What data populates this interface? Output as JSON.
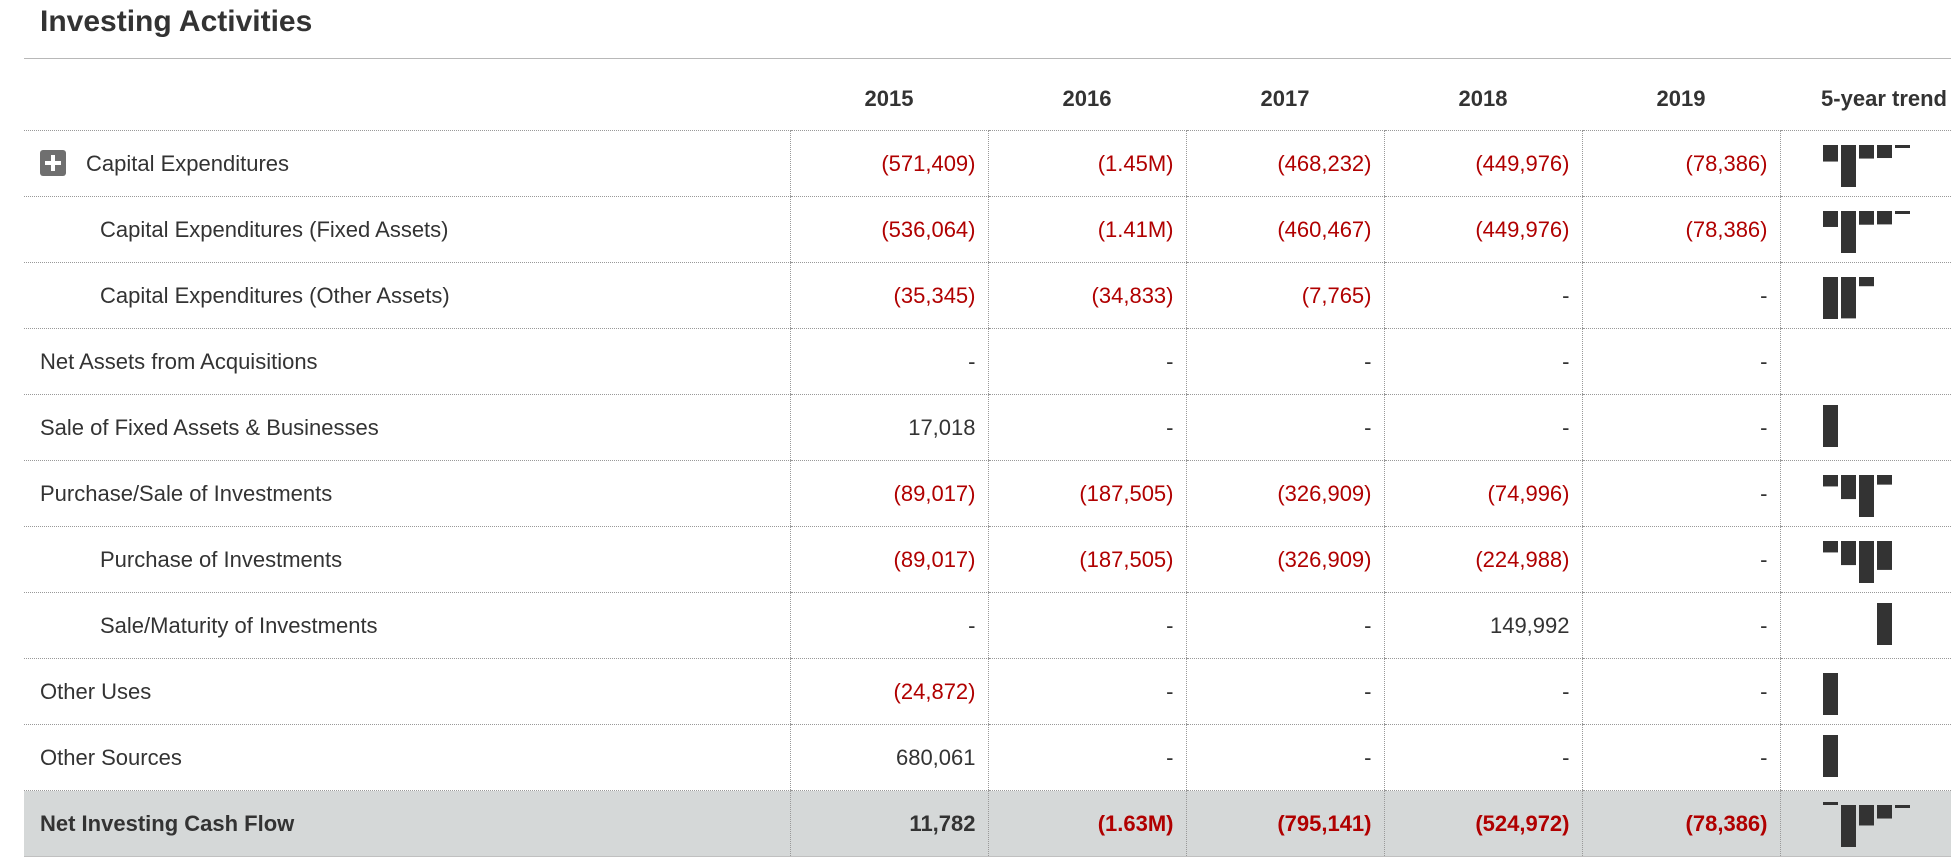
{
  "section_title": "Investing Activities",
  "columns": [
    "2015",
    "2016",
    "2017",
    "2018",
    "2019"
  ],
  "trend_header": "5-year trend",
  "rows": [
    {
      "label": "Capital Expenditures",
      "level": 1,
      "expandable": true,
      "values": [
        "(571,409)",
        "(1.45M)",
        "(468,232)",
        "(449,976)",
        "(78,386)"
      ],
      "trend": [
        -571409,
        -1450000,
        -468232,
        -449976,
        -78386
      ]
    },
    {
      "label": "Capital Expenditures (Fixed Assets)",
      "level": 2,
      "values": [
        "(536,064)",
        "(1.41M)",
        "(460,467)",
        "(449,976)",
        "(78,386)"
      ],
      "trend": [
        -536064,
        -1410000,
        -460467,
        -449976,
        -78386
      ]
    },
    {
      "label": "Capital Expenditures (Other Assets)",
      "level": 2,
      "values": [
        "(35,345)",
        "(34,833)",
        "(7,765)",
        "-",
        "-"
      ],
      "trend": [
        -35345,
        -34833,
        -7765,
        null,
        null
      ]
    },
    {
      "label": "Net Assets from Acquisitions",
      "level": 0,
      "values": [
        "-",
        "-",
        "-",
        "-",
        "-"
      ],
      "trend": [
        null,
        null,
        null,
        null,
        null
      ]
    },
    {
      "label": "Sale of Fixed Assets & Businesses",
      "level": 0,
      "values": [
        "17,018",
        "-",
        "-",
        "-",
        "-"
      ],
      "trend": [
        17018,
        null,
        null,
        null,
        null
      ]
    },
    {
      "label": "Purchase/Sale of Investments",
      "level": 0,
      "values": [
        "(89,017)",
        "(187,505)",
        "(326,909)",
        "(74,996)",
        "-"
      ],
      "trend": [
        -89017,
        -187505,
        -326909,
        -74996,
        null
      ]
    },
    {
      "label": "Purchase of Investments",
      "level": 2,
      "values": [
        "(89,017)",
        "(187,505)",
        "(326,909)",
        "(224,988)",
        "-"
      ],
      "trend": [
        -89017,
        -187505,
        -326909,
        -224988,
        null
      ]
    },
    {
      "label": "Sale/Maturity of Investments",
      "level": 2,
      "values": [
        "-",
        "-",
        "-",
        "149,992",
        "-"
      ],
      "trend": [
        null,
        null,
        null,
        149992,
        null
      ]
    },
    {
      "label": "Other Uses",
      "level": 0,
      "values": [
        "(24,872)",
        "-",
        "-",
        "-",
        "-"
      ],
      "trend": [
        -24872,
        null,
        null,
        null,
        null
      ]
    },
    {
      "label": "Other Sources",
      "level": 0,
      "values": [
        "680,061",
        "-",
        "-",
        "-",
        "-"
      ],
      "trend": [
        680061,
        null,
        null,
        null,
        null
      ]
    },
    {
      "label": "Net Investing Cash Flow",
      "level": 0,
      "total": true,
      "values": [
        "11,782",
        "(1.63M)",
        "(795,141)",
        "(524,972)",
        "(78,386)"
      ],
      "trend": [
        11782,
        -1630000,
        -795141,
        -524972,
        -78386
      ]
    }
  ],
  "colors": {
    "negative": "#b00000",
    "bar": "#333333",
    "total_bg": "#d5d8d8"
  }
}
